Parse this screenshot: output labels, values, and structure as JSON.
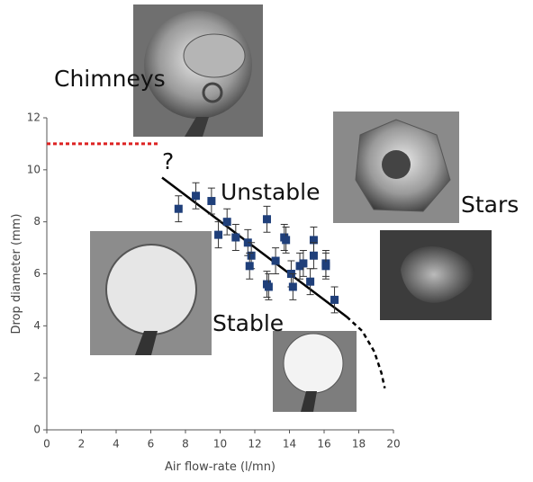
{
  "chart_data": {
    "type": "scatter",
    "xlabel": "Air flow-rate (l/mn)",
    "ylabel": "Drop diameter (mm)",
    "xlim": [
      0,
      20
    ],
    "ylim": [
      0,
      12
    ],
    "xticks": [
      0,
      2,
      4,
      6,
      8,
      10,
      12,
      14,
      16,
      18,
      20
    ],
    "yticks": [
      0,
      2,
      4,
      6,
      8,
      10,
      12
    ],
    "annotations": [
      "Chimneys",
      "?",
      "Unstable",
      "Stars",
      "Stable"
    ],
    "series": [
      {
        "color": "#1f3f7a",
        "x": [
          7.6,
          8.6,
          9.5,
          9.9,
          10.4,
          10.9,
          11.6,
          11.8,
          11.7,
          12.7,
          12.7,
          12.8,
          13.2,
          13.7,
          13.8,
          14.1,
          14.2,
          14.6,
          14.8,
          15.2,
          15.4,
          15.4,
          16.1,
          16.1,
          16.6
        ],
        "values": [
          8.5,
          9.0,
          8.8,
          7.5,
          8.0,
          7.4,
          7.2,
          6.7,
          6.3,
          8.1,
          5.6,
          5.5,
          6.5,
          7.4,
          7.3,
          6.0,
          5.5,
          6.3,
          6.4,
          5.7,
          7.3,
          6.7,
          6.4,
          6.3,
          5.0
        ],
        "errors": [
          0.5,
          0.5,
          0.5,
          0.5,
          0.5,
          0.5,
          0.5,
          0.5,
          0.5,
          0.5,
          0.5,
          0.5,
          0.5,
          0.5,
          0.5,
          0.5,
          0.5,
          0.5,
          0.5,
          0.5,
          0.5,
          0.5,
          0.5,
          0.5,
          0.5
        ]
      }
    ],
    "lines": [
      {
        "x": [
          6.65,
          17.3
        ],
        "y": [
          9.7,
          4.35
        ],
        "color": "#000000",
        "style": "solid"
      },
      {
        "x": [
          17.3,
          18.2,
          18.9,
          19.3,
          19.5
        ],
        "y": [
          4.35,
          3.8,
          3.0,
          2.2,
          1.6
        ],
        "color": "#000000",
        "style": "dashed"
      },
      {
        "x": [
          0,
          6.4
        ],
        "y": [
          11,
          11
        ],
        "color": "#dd2222",
        "style": "dashed"
      }
    ]
  }
}
